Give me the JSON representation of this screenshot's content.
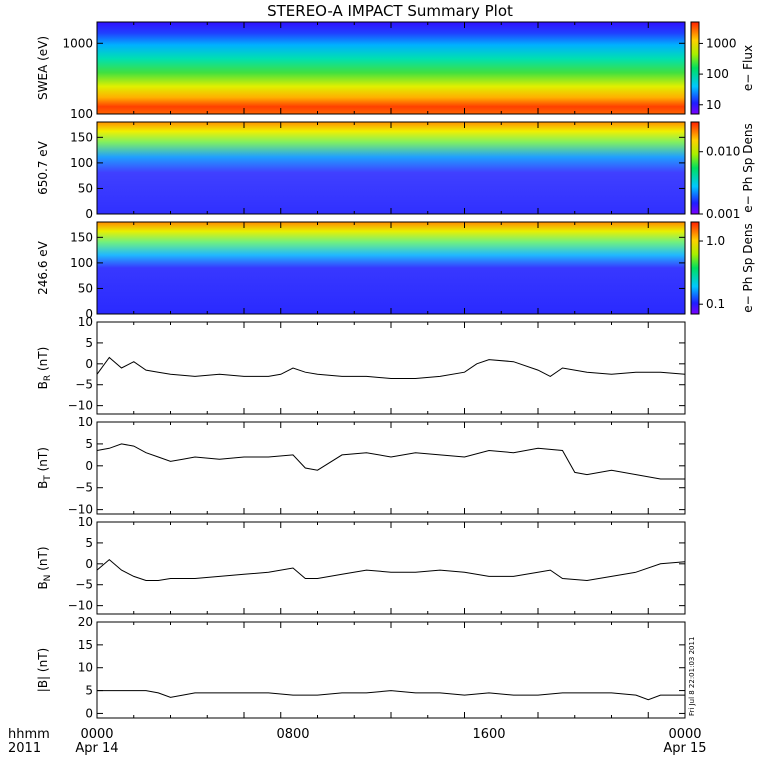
{
  "title": "STEREO-A IMPACT Summary Plot",
  "time_axis": {
    "ticks": [
      {
        "label": "0000",
        "sublabel": "Apr 14"
      },
      {
        "label": "0800",
        "sublabel": ""
      },
      {
        "label": "1600",
        "sublabel": ""
      },
      {
        "label": "0000",
        "sublabel": "Apr 15"
      }
    ],
    "left_label_1": "hhmm",
    "left_label_2": "2011"
  },
  "side_stamp": "Fri Jul 8 22:01:03 2011",
  "chart_data": [
    {
      "type": "heatmap",
      "ylabel": "SWEA (eV)",
      "yscale": "log",
      "ylim": [
        100,
        2000
      ],
      "yticks": [
        "100",
        "1000"
      ],
      "colorbar": {
        "label": "e− Flux",
        "scale": "log",
        "ticks": [
          "10",
          "100",
          "1000"
        ],
        "range": [
          5,
          5000
        ]
      },
      "description_values": "flux high (~3000) near 100 eV decreasing to ~10 above 1500 eV"
    },
    {
      "type": "heatmap",
      "ylabel": "650.7 eV",
      "ylim": [
        0,
        180
      ],
      "yticks": [
        "0",
        "50",
        "100",
        "150"
      ],
      "colorbar": {
        "label": "e− Ph Sp Dens",
        "scale": "log",
        "ticks": [
          "0.001",
          "0.010"
        ],
        "range": [
          0.001,
          0.03
        ]
      }
    },
    {
      "type": "heatmap",
      "ylabel": "246.6 eV",
      "ylim": [
        0,
        180
      ],
      "yticks": [
        "0",
        "50",
        "100",
        "150"
      ],
      "colorbar": {
        "label": "e− Ph Sp Dens",
        "scale": "log",
        "ticks": [
          "0.1",
          "1.0"
        ],
        "range": [
          0.07,
          2.0
        ]
      }
    },
    {
      "type": "line",
      "ylabel": "B",
      "ysub": "R",
      "yunit": " (nT)",
      "ylim": [
        -12,
        10
      ],
      "yticks": [
        "−10",
        "−5",
        "0",
        "5",
        "10"
      ],
      "x": [
        0.0,
        0.5,
        1.0,
        1.5,
        2.0,
        2.5,
        3.0,
        4.0,
        5.0,
        6.0,
        7.0,
        7.5,
        8.0,
        8.5,
        9.0,
        10.0,
        11.0,
        12.0,
        13.0,
        14.0,
        15.0,
        15.5,
        16.0,
        17.0,
        18.0,
        18.5,
        19.0,
        20.0,
        21.0,
        22.0,
        23.0,
        24.0
      ],
      "y": [
        -2.5,
        1.5,
        -1.0,
        0.5,
        -1.5,
        -2.0,
        -2.5,
        -3.0,
        -2.5,
        -3.0,
        -3.0,
        -2.5,
        -1.0,
        -2.0,
        -2.5,
        -3.0,
        -3.0,
        -3.5,
        -3.5,
        -3.0,
        -2.0,
        0.0,
        1.0,
        0.5,
        -1.5,
        -3.0,
        -1.0,
        -2.0,
        -2.5,
        -2.0,
        -2.0,
        -2.5
      ]
    },
    {
      "type": "line",
      "ylabel": "B",
      "ysub": "T",
      "yunit": " (nT)",
      "ylim": [
        -11,
        10
      ],
      "yticks": [
        "−10",
        "−5",
        "0",
        "5",
        "10"
      ],
      "x": [
        0.0,
        0.5,
        1.0,
        1.5,
        2.0,
        2.5,
        3.0,
        3.5,
        4.0,
        5.0,
        6.0,
        7.0,
        8.0,
        8.5,
        9.0,
        10.0,
        11.0,
        12.0,
        13.0,
        14.0,
        15.0,
        16.0,
        17.0,
        18.0,
        19.0,
        19.5,
        20.0,
        21.0,
        22.0,
        23.0,
        24.0
      ],
      "y": [
        3.5,
        4.0,
        5.0,
        4.5,
        3.0,
        2.0,
        1.0,
        1.5,
        2.0,
        1.5,
        2.0,
        2.0,
        2.5,
        -0.5,
        -1.0,
        2.5,
        3.0,
        2.0,
        3.0,
        2.5,
        2.0,
        3.5,
        3.0,
        4.0,
        3.5,
        -1.5,
        -2.0,
        -1.0,
        -2.0,
        -3.0,
        -3.0
      ]
    },
    {
      "type": "line",
      "ylabel": "B",
      "ysub": "N",
      "yunit": " (nT)",
      "ylim": [
        -12,
        10
      ],
      "yticks": [
        "−10",
        "−5",
        "0",
        "5",
        "10"
      ],
      "x": [
        0.0,
        0.5,
        1.0,
        1.5,
        2.0,
        2.5,
        3.0,
        4.0,
        5.0,
        6.0,
        7.0,
        8.0,
        8.5,
        9.0,
        10.0,
        11.0,
        12.0,
        13.0,
        14.0,
        15.0,
        16.0,
        17.0,
        18.0,
        18.5,
        19.0,
        20.0,
        21.0,
        22.0,
        23.0,
        24.0
      ],
      "y": [
        -1.5,
        1.0,
        -1.5,
        -3.0,
        -4.0,
        -4.0,
        -3.5,
        -3.5,
        -3.0,
        -2.5,
        -2.0,
        -1.0,
        -3.5,
        -3.5,
        -2.5,
        -1.5,
        -2.0,
        -2.0,
        -1.5,
        -2.0,
        -3.0,
        -3.0,
        -2.0,
        -1.5,
        -3.5,
        -4.0,
        -3.0,
        -2.0,
        0.0,
        0.5
      ]
    },
    {
      "type": "line",
      "ylabel": "|B| (nT)",
      "ylim": [
        -1,
        20
      ],
      "yticks": [
        "0",
        "5",
        "10",
        "15",
        "20"
      ],
      "x": [
        0.0,
        0.5,
        1.0,
        1.5,
        2.0,
        2.5,
        3.0,
        3.5,
        4.0,
        5.0,
        6.0,
        7.0,
        8.0,
        9.0,
        10.0,
        11.0,
        12.0,
        13.0,
        14.0,
        15.0,
        16.0,
        17.0,
        18.0,
        19.0,
        20.0,
        21.0,
        22.0,
        22.5,
        23.0,
        24.0
      ],
      "y": [
        5.0,
        5.0,
        5.0,
        5.0,
        5.0,
        4.5,
        3.5,
        4.0,
        4.5,
        4.5,
        4.5,
        4.5,
        4.0,
        4.0,
        4.5,
        4.5,
        5.0,
        4.5,
        4.5,
        4.0,
        4.5,
        4.0,
        4.0,
        4.5,
        4.5,
        4.5,
        4.0,
        3.0,
        4.0,
        4.0
      ]
    }
  ]
}
